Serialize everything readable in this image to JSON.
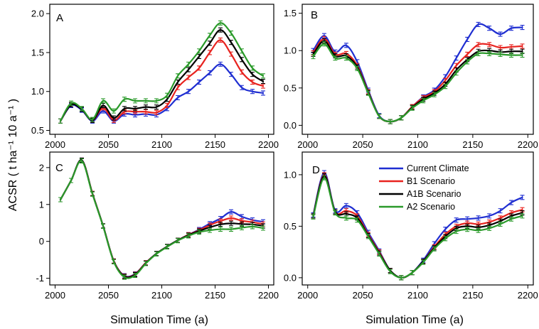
{
  "chart_data": {
    "type": "line",
    "xlabel": "Simulation Time (a)",
    "ylabel": "ACSR ( t ha⁻¹ 10 a⁻¹ )",
    "xlim": [
      1995,
      2205
    ],
    "xticks": [
      2000,
      2050,
      2100,
      2150,
      2200
    ],
    "x": [
      2005,
      2015,
      2025,
      2035,
      2045,
      2055,
      2065,
      2075,
      2085,
      2095,
      2105,
      2115,
      2125,
      2135,
      2145,
      2155,
      2165,
      2175,
      2185,
      2195
    ],
    "legend": {
      "placement": "panel-D-top-right",
      "entries": [
        "Current Climate",
        "B1 Scenario",
        "A1B Scenario",
        "A2 Scenario"
      ]
    },
    "colors": {
      "Current Climate": "#1f2ed1",
      "B1 Scenario": "#e8231f",
      "A1B Scenario": "#000000",
      "A2 Scenario": "#2a9a2a"
    },
    "panels": [
      {
        "label": "A",
        "ylim": [
          0.45,
          2.12
        ],
        "yticks": [
          0.5,
          1.0,
          1.5,
          2.0
        ],
        "yticklabels": [
          "0.5",
          "1.0",
          "1.5",
          "2.0"
        ],
        "series": [
          {
            "name": "Current Climate",
            "values": [
              0.62,
              0.82,
              0.76,
              0.62,
              0.75,
              0.62,
              0.71,
              0.7,
              0.71,
              0.7,
              0.78,
              0.92,
              1.0,
              1.12,
              1.24,
              1.35,
              1.22,
              1.05,
              1.0,
              0.98
            ]
          },
          {
            "name": "B1 Scenario",
            "values": [
              0.62,
              0.83,
              0.77,
              0.63,
              0.79,
              0.63,
              0.74,
              0.74,
              0.74,
              0.73,
              0.82,
              1.05,
              1.18,
              1.3,
              1.5,
              1.66,
              1.48,
              1.25,
              1.12,
              1.07
            ]
          },
          {
            "name": "A1B Scenario",
            "values": [
              0.62,
              0.83,
              0.77,
              0.63,
              0.82,
              0.66,
              0.78,
              0.78,
              0.8,
              0.8,
              0.9,
              1.12,
              1.28,
              1.45,
              1.62,
              1.79,
              1.63,
              1.41,
              1.22,
              1.13
            ]
          },
          {
            "name": "A2 Scenario",
            "values": [
              0.62,
              0.85,
              0.78,
              0.64,
              0.88,
              0.75,
              0.9,
              0.88,
              0.88,
              0.88,
              0.95,
              1.2,
              1.35,
              1.52,
              1.72,
              1.88,
              1.75,
              1.52,
              1.3,
              1.2
            ]
          }
        ]
      },
      {
        "label": "B",
        "ylim": [
          -0.12,
          1.62
        ],
        "yticks": [
          0.0,
          0.5,
          1.0,
          1.5
        ],
        "yticklabels": [
          "0.0",
          "0.5",
          "1.0",
          "1.5"
        ],
        "series": [
          {
            "name": "Current Climate",
            "values": [
              1.0,
              1.2,
              0.98,
              1.07,
              0.85,
              0.47,
              0.13,
              0.05,
              0.1,
              0.25,
              0.38,
              0.47,
              0.65,
              0.9,
              1.15,
              1.35,
              1.3,
              1.22,
              1.3,
              1.31
            ]
          },
          {
            "name": "B1 Scenario",
            "values": [
              0.97,
              1.16,
              0.95,
              0.96,
              0.8,
              0.45,
              0.12,
              0.05,
              0.1,
              0.25,
              0.37,
              0.45,
              0.6,
              0.8,
              0.95,
              1.08,
              1.08,
              1.04,
              1.05,
              1.06
            ]
          },
          {
            "name": "A1B Scenario",
            "values": [
              0.95,
              1.13,
              0.93,
              0.93,
              0.78,
              0.44,
              0.12,
              0.05,
              0.1,
              0.24,
              0.35,
              0.43,
              0.55,
              0.74,
              0.88,
              0.99,
              1.0,
              0.98,
              0.99,
              0.99
            ]
          },
          {
            "name": "A2 Scenario",
            "values": [
              0.92,
              1.09,
              0.9,
              0.9,
              0.76,
              0.43,
              0.12,
              0.05,
              0.1,
              0.23,
              0.33,
              0.41,
              0.52,
              0.7,
              0.85,
              0.96,
              0.96,
              0.95,
              0.94,
              0.94
            ]
          }
        ]
      },
      {
        "label": "C",
        "ylim": [
          -1.18,
          2.42
        ],
        "yticks": [
          -1,
          0,
          1,
          2
        ],
        "yticklabels": [
          "-1",
          "0",
          "1",
          "2"
        ],
        "series": [
          {
            "name": "Current Climate",
            "values": [
              1.13,
              1.65,
              2.2,
              1.3,
              0.42,
              -0.53,
              -0.93,
              -0.88,
              -0.58,
              -0.33,
              -0.14,
              0.03,
              0.18,
              0.32,
              0.48,
              0.62,
              0.8,
              0.67,
              0.58,
              0.53
            ]
          },
          {
            "name": "B1 Scenario",
            "values": [
              1.13,
              1.65,
              2.2,
              1.3,
              0.42,
              -0.53,
              -0.94,
              -0.89,
              -0.58,
              -0.33,
              -0.14,
              0.03,
              0.18,
              0.3,
              0.44,
              0.55,
              0.63,
              0.56,
              0.52,
              0.47
            ]
          },
          {
            "name": "A1B Scenario",
            "values": [
              1.13,
              1.65,
              2.2,
              1.29,
              0.42,
              -0.54,
              -0.95,
              -0.9,
              -0.59,
              -0.33,
              -0.14,
              0.03,
              0.17,
              0.28,
              0.38,
              0.46,
              0.49,
              0.47,
              0.46,
              0.42
            ]
          },
          {
            "name": "A2 Scenario",
            "values": [
              1.13,
              1.65,
              2.18,
              1.28,
              0.41,
              -0.55,
              -0.97,
              -0.92,
              -0.6,
              -0.34,
              -0.15,
              0.02,
              0.15,
              0.25,
              0.3,
              0.33,
              0.33,
              0.37,
              0.4,
              0.36
            ]
          }
        ]
      },
      {
        "label": "D",
        "ylim": [
          -0.07,
          1.22
        ],
        "yticks": [
          0.0,
          0.5,
          1.0
        ],
        "yticklabels": [
          "0.0",
          "0.5",
          "1.0"
        ],
        "series": [
          {
            "name": "Current Climate",
            "values": [
              0.61,
              1.02,
              0.65,
              0.7,
              0.63,
              0.44,
              0.26,
              0.07,
              0.0,
              0.05,
              0.17,
              0.33,
              0.47,
              0.56,
              0.57,
              0.58,
              0.6,
              0.65,
              0.73,
              0.78
            ]
          },
          {
            "name": "B1 Scenario",
            "values": [
              0.6,
              1.0,
              0.64,
              0.65,
              0.6,
              0.42,
              0.25,
              0.07,
              0.0,
              0.05,
              0.16,
              0.3,
              0.42,
              0.5,
              0.53,
              0.52,
              0.54,
              0.58,
              0.63,
              0.66
            ]
          },
          {
            "name": "A1B Scenario",
            "values": [
              0.6,
              0.99,
              0.64,
              0.62,
              0.58,
              0.41,
              0.24,
              0.07,
              0.0,
              0.05,
              0.16,
              0.29,
              0.4,
              0.48,
              0.5,
              0.49,
              0.51,
              0.55,
              0.6,
              0.63
            ]
          },
          {
            "name": "A2 Scenario",
            "values": [
              0.59,
              0.97,
              0.63,
              0.58,
              0.56,
              0.4,
              0.23,
              0.06,
              0.0,
              0.05,
              0.15,
              0.28,
              0.38,
              0.45,
              0.47,
              0.46,
              0.48,
              0.52,
              0.57,
              0.6
            ]
          }
        ]
      }
    ]
  }
}
